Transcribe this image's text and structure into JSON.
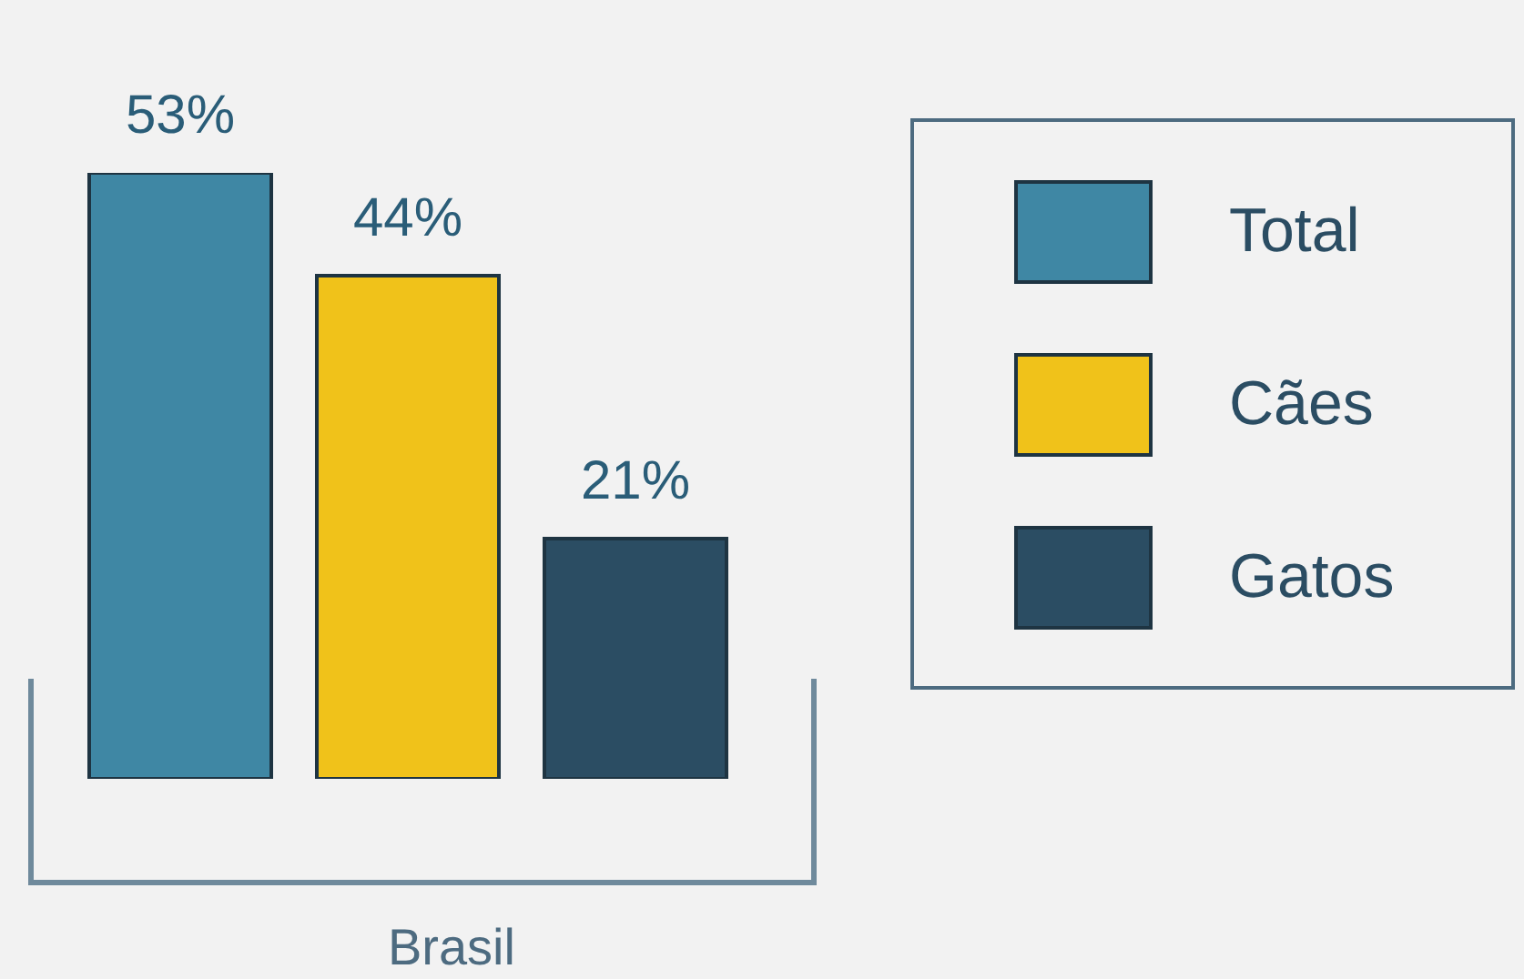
{
  "chart_data": {
    "type": "bar",
    "categories": [
      null,
      null,
      null
    ],
    "xlabel": "Brasil",
    "stacked": true,
    "series": [
      {
        "name": "Total",
        "color": "#3f87a4",
        "values": [
          53,
          null,
          null
        ],
        "value_labels": [
          "53%",
          null,
          null
        ]
      },
      {
        "name": "Cães",
        "color": "#f0c21a",
        "values": [
          null,
          44,
          null
        ],
        "value_labels": [
          null,
          "44%",
          null
        ]
      },
      {
        "name": "Gatos",
        "color": "#2b4d63",
        "values": [
          null,
          null,
          21
        ],
        "value_labels": [
          null,
          null,
          "21%"
        ]
      }
    ],
    "legend": "right"
  }
}
